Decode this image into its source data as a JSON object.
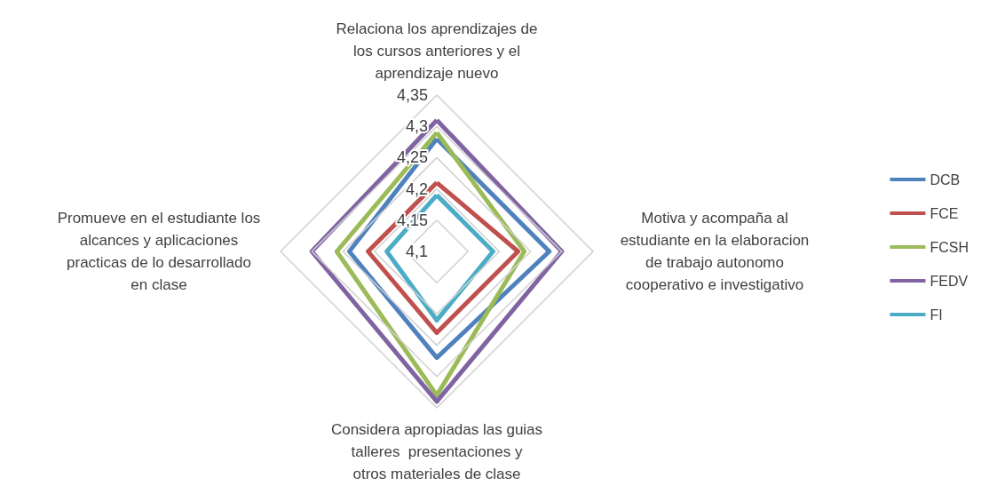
{
  "chart_data": {
    "type": "radar",
    "categories": [
      "Relaciona los aprendizajes de los cursos anteriores y el aprendizaje nuevo",
      "Motiva y acompaña al estudiante en la elaboracion de trabajo autonomo cooperativo e investigativo",
      "Considera apropiadas las guias  talleres  presentaciones y otros materiales de clase",
      "Promueve en el estudiante los alcances y aplicaciones practicas de lo desarrollado en clase"
    ],
    "series": [
      {
        "name": "DCB",
        "color": "#4f81bd",
        "values": [
          4.28,
          4.28,
          4.27,
          4.24
        ]
      },
      {
        "name": "FCE",
        "color": "#c0504d",
        "values": [
          4.21,
          4.23,
          4.23,
          4.21
        ]
      },
      {
        "name": "FCSH",
        "color": "#9bbb59",
        "values": [
          4.29,
          4.24,
          4.33,
          4.26
        ]
      },
      {
        "name": "FEDV",
        "color": "#8064a2",
        "values": [
          4.31,
          4.3,
          4.34,
          4.3
        ]
      },
      {
        "name": "FI",
        "color": "#4bacc6",
        "values": [
          4.19,
          4.19,
          4.21,
          4.18
        ]
      }
    ],
    "ylim": [
      4.1,
      4.35
    ],
    "yticks": [
      {
        "value": 4.1,
        "label": "4,1"
      },
      {
        "value": 4.15,
        "label": "4,15"
      },
      {
        "value": 4.2,
        "label": "4,2"
      },
      {
        "value": 4.25,
        "label": "4,25"
      },
      {
        "value": 4.3,
        "label": "4,3"
      },
      {
        "value": 4.35,
        "label": "4,35"
      }
    ],
    "grid": true,
    "legend": "right",
    "marker": "none",
    "line_style": "solid"
  }
}
